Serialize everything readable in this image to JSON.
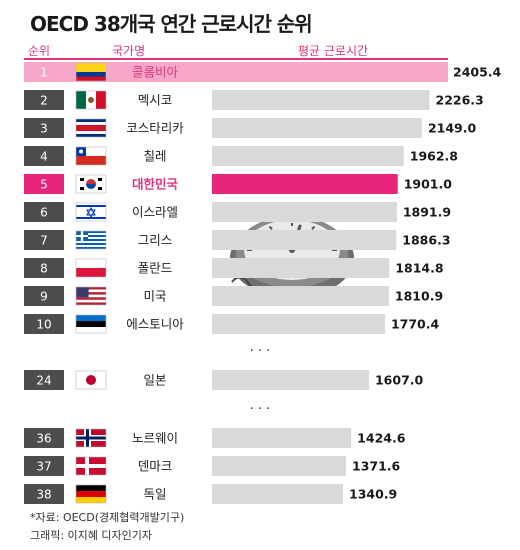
{
  "title": "OECD 38개국 연간 근로시간 순위",
  "headers": {
    "rank": "순위",
    "country": "국가명",
    "hours": "평균 근로시간"
  },
  "ellipsis": "· · ·",
  "chart_data": {
    "type": "bar",
    "orientation": "horizontal",
    "title": "OECD 38개국 연간 근로시간 순위",
    "value_axis_max": 2405.4,
    "rows": [
      {
        "rank": "1",
        "country": "콜롬비아",
        "flag": "colombia-flag",
        "value": 2405.4,
        "value_label": "2405.4",
        "style": "top"
      },
      {
        "rank": "2",
        "country": "멕시코",
        "flag": "mexico-flag",
        "value": 2226.3,
        "value_label": "2226.3",
        "style": "normal"
      },
      {
        "rank": "3",
        "country": "코스타리카",
        "flag": "costa-rica-flag",
        "value": 2149.0,
        "value_label": "2149.0",
        "style": "normal"
      },
      {
        "rank": "4",
        "country": "칠레",
        "flag": "chile-flag",
        "value": 1962.8,
        "value_label": "1962.8",
        "style": "normal"
      },
      {
        "rank": "5",
        "country": "대한민국",
        "flag": "korea-flag",
        "value": 1901.0,
        "value_label": "1901.0",
        "style": "highlight"
      },
      {
        "rank": "6",
        "country": "이스라엘",
        "flag": "israel-flag",
        "value": 1891.9,
        "value_label": "1891.9",
        "style": "normal"
      },
      {
        "rank": "7",
        "country": "그리스",
        "flag": "greece-flag",
        "value": 1886.3,
        "value_label": "1886.3",
        "style": "normal"
      },
      {
        "rank": "8",
        "country": "폴란드",
        "flag": "poland-flag",
        "value": 1814.8,
        "value_label": "1814.8",
        "style": "normal"
      },
      {
        "rank": "9",
        "country": "미국",
        "flag": "usa-flag",
        "value": 1810.9,
        "value_label": "1810.9",
        "style": "normal"
      },
      {
        "rank": "10",
        "country": "에스토니아",
        "flag": "estonia-flag",
        "value": 1770.4,
        "value_label": "1770.4",
        "style": "normal"
      },
      {
        "rank": "24",
        "country": "일본",
        "flag": "japan-flag",
        "value": 1607.0,
        "value_label": "1607.0",
        "style": "normal"
      },
      {
        "rank": "36",
        "country": "노르웨이",
        "flag": "norway-flag",
        "value": 1424.6,
        "value_label": "1424.6",
        "style": "normal"
      },
      {
        "rank": "37",
        "country": "덴마크",
        "flag": "denmark-flag",
        "value": 1371.6,
        "value_label": "1371.6",
        "style": "normal"
      },
      {
        "rank": "38",
        "country": "독일",
        "flag": "germany-flag",
        "value": 1340.9,
        "value_label": "1340.9",
        "style": "normal"
      }
    ],
    "colors": {
      "top_bar": "#f7a8c8",
      "highlight_bar": "#e8257a",
      "normal_bar": "#d9d9d9",
      "top_badge": "#f7a8c8",
      "highlight_badge": "#e8257a",
      "normal_badge": "#4d4d4d",
      "accent_text": "#e0357e"
    }
  },
  "decor": {
    "illustration": "clock-illustration"
  },
  "footer": {
    "source": "*자료: OECD(경제협력개발기구)",
    "credit": "그래픽: 이지혜 디자인기자"
  }
}
